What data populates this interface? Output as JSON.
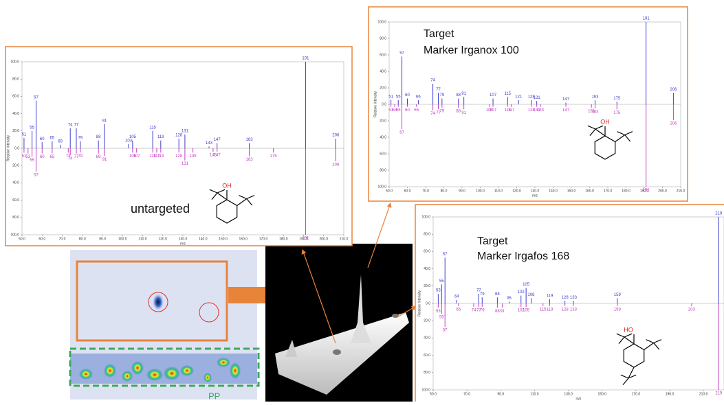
{
  "chart_data": [
    {
      "type": "mirror",
      "annotation": [
        "untargeted"
      ],
      "structure_label": "OH",
      "x_label": "m/z",
      "y_label": "Relative Intensity",
      "xlim": [
        50,
        210
      ],
      "xticks": [
        {
          "value": 50,
          "label": "50.0"
        },
        {
          "value": 60,
          "label": "60.0"
        },
        {
          "value": 70,
          "label": "70.0"
        },
        {
          "value": 80,
          "label": "80.0"
        },
        {
          "value": 90,
          "label": "90.0"
        },
        {
          "value": 100,
          "label": "100.0"
        },
        {
          "value": 110,
          "label": "110.0"
        },
        {
          "value": 120,
          "label": "120.0"
        },
        {
          "value": 130,
          "label": "130.0"
        },
        {
          "value": 140,
          "label": "140.0"
        },
        {
          "value": 150,
          "label": "150.0"
        },
        {
          "value": 160,
          "label": "160.0"
        },
        {
          "value": 170,
          "label": "170.0"
        },
        {
          "value": 180,
          "label": "180.0"
        },
        {
          "value": 190,
          "label": "190.0"
        },
        {
          "value": 200,
          "label": "200.0"
        },
        {
          "value": 210,
          "label": "210.0"
        }
      ],
      "ylim": [
        -100,
        100
      ],
      "yticks": [
        {
          "value": 100,
          "label": "100.0"
        },
        {
          "value": 80,
          "label": "80.0"
        },
        {
          "value": 60,
          "label": "60.0"
        },
        {
          "value": 40,
          "label": "40.0"
        },
        {
          "value": 20,
          "label": "20.0"
        },
        {
          "value": 0,
          "label": "0.0"
        },
        {
          "value": -20,
          "label": "20.0"
        },
        {
          "value": -40,
          "label": "40.0"
        },
        {
          "value": -60,
          "label": "60.0"
        },
        {
          "value": -80,
          "label": "80.0"
        },
        {
          "value": -100,
          "label": "100.0"
        }
      ],
      "series": [
        {
          "color": "#3a3ad0",
          "x": [
            51,
            55,
            57,
            60,
            65,
            69,
            74,
            77,
            79,
            88,
            91,
            103,
            105,
            115,
            119,
            128,
            131,
            143,
            147,
            163,
            191,
            206
          ],
          "values": [
            12,
            20,
            55,
            7,
            8,
            4,
            23,
            23,
            8,
            9,
            28,
            5,
            9,
            20,
            9,
            11,
            16,
            2,
            6,
            6,
            100,
            11
          ]
        },
        {
          "color": "#c03cc0",
          "x": [
            51,
            53,
            55,
            57,
            60,
            65,
            73,
            74,
            77,
            79,
            88,
            91,
            105,
            107,
            115,
            117,
            119,
            128,
            131,
            135,
            145,
            147,
            163,
            175,
            191,
            206
          ],
          "values": [
            -5,
            -6,
            -10,
            -27,
            -6,
            -6,
            -5,
            -8,
            -6,
            -5,
            -6,
            -9,
            -5,
            -5,
            -5,
            -5,
            -5,
            -5,
            -14,
            -5,
            -4,
            -4,
            -9,
            -5,
            -100,
            -15
          ]
        }
      ]
    },
    {
      "type": "mirror",
      "annotation": [
        "Target",
        "Marker Irganox 100"
      ],
      "structure_label": "OH",
      "x_label": "m/z",
      "y_label": "Relative Intensity",
      "xlim": [
        50,
        210
      ],
      "xticks": [
        {
          "value": 50,
          "label": "50.0"
        },
        {
          "value": 60,
          "label": "60.0"
        },
        {
          "value": 70,
          "label": "70.0"
        },
        {
          "value": 80,
          "label": "80.0"
        },
        {
          "value": 90,
          "label": "90.0"
        },
        {
          "value": 100,
          "label": "100.0"
        },
        {
          "value": 110,
          "label": "110.0"
        },
        {
          "value": 120,
          "label": "120.0"
        },
        {
          "value": 130,
          "label": "130.0"
        },
        {
          "value": 140,
          "label": "140.0"
        },
        {
          "value": 150,
          "label": "150.0"
        },
        {
          "value": 160,
          "label": "160.0"
        },
        {
          "value": 170,
          "label": "170.0"
        },
        {
          "value": 180,
          "label": "180.0"
        },
        {
          "value": 190,
          "label": "190.0"
        },
        {
          "value": 200,
          "label": "200.0"
        },
        {
          "value": 210,
          "label": "210.0"
        }
      ],
      "ylim": [
        -100,
        100
      ],
      "yticks": [
        {
          "value": 100,
          "label": "100.0"
        },
        {
          "value": 80,
          "label": "80.0"
        },
        {
          "value": 60,
          "label": "60.0"
        },
        {
          "value": 40,
          "label": "40.0"
        },
        {
          "value": 20,
          "label": "20.0"
        },
        {
          "value": 0,
          "label": "0.0"
        },
        {
          "value": -20,
          "label": "20.0"
        },
        {
          "value": -40,
          "label": "40.0"
        },
        {
          "value": -60,
          "label": "60.0"
        },
        {
          "value": -80,
          "label": "80.0"
        },
        {
          "value": -100,
          "label": "100.0"
        }
      ],
      "series": [
        {
          "color": "#3a3ad0",
          "x": [
            51,
            55,
            57,
            60,
            66,
            74,
            77,
            79,
            88,
            91,
            107,
            115,
            121,
            128,
            131,
            147,
            163,
            175,
            191,
            206
          ],
          "values": [
            5,
            5,
            58,
            7,
            5,
            25,
            14,
            7,
            7,
            9,
            7,
            9,
            5,
            5,
            4,
            2,
            5,
            3,
            100,
            14
          ]
        },
        {
          "color": "#c03cc0",
          "x": [
            51,
            53,
            55,
            57,
            60,
            65,
            74,
            77,
            79,
            88,
            91,
            105,
            107,
            115,
            117,
            128,
            131,
            133,
            147,
            161,
            163,
            175,
            191,
            206
          ],
          "values": [
            -3,
            -3,
            -3,
            -30,
            -3,
            -3,
            -7,
            -6,
            -4,
            -4,
            -6,
            -3,
            -3,
            -3,
            -3,
            -3,
            -3,
            -3,
            -3,
            -4,
            -5,
            -6,
            -100,
            -19
          ]
        }
      ]
    },
    {
      "type": "mirror",
      "annotation": [
        "Target",
        "Marker Irgafos 168"
      ],
      "structure_label": "HO",
      "x_label": "m/z",
      "y_label": "Relative Intensity",
      "xlim": [
        50,
        225
      ],
      "xticks": [
        {
          "value": 50,
          "label": "50.0"
        },
        {
          "value": 70,
          "label": "70.0"
        },
        {
          "value": 90,
          "label": "90.0"
        },
        {
          "value": 110,
          "label": "110.0"
        },
        {
          "value": 130,
          "label": "130.0"
        },
        {
          "value": 150,
          "label": "150.0"
        },
        {
          "value": 170,
          "label": "170.0"
        },
        {
          "value": 190,
          "label": "190.0"
        },
        {
          "value": 210,
          "label": "210.0"
        }
      ],
      "ylim": [
        -100,
        100
      ],
      "yticks": [
        {
          "value": 100,
          "label": "100.0"
        },
        {
          "value": 80,
          "label": "80.0"
        },
        {
          "value": 60,
          "label": "60.0"
        },
        {
          "value": 40,
          "label": "40.0"
        },
        {
          "value": 20,
          "label": "20.0"
        },
        {
          "value": 0,
          "label": "0.0"
        },
        {
          "value": -20,
          "label": "20.0"
        },
        {
          "value": -40,
          "label": "40.0"
        },
        {
          "value": -60,
          "label": "60.0"
        },
        {
          "value": -80,
          "label": "80.0"
        },
        {
          "value": -100,
          "label": "100.0"
        }
      ],
      "series": [
        {
          "color": "#3a3ad0",
          "x": [
            53,
            55,
            57,
            64,
            77,
            79,
            88,
            95,
            102,
            105,
            108,
            119,
            128,
            133,
            159,
            219
          ],
          "values": [
            11,
            22,
            53,
            4,
            11,
            7,
            7,
            2,
            9,
            18,
            6,
            5,
            3,
            3,
            6,
            100
          ]
        },
        {
          "color": "#c03cc0",
          "x": [
            53,
            55,
            57,
            65,
            74,
            77,
            79,
            88,
            91,
            102,
            105,
            115,
            119,
            128,
            133,
            159,
            203,
            219
          ],
          "values": [
            -5,
            -12,
            -27,
            -3,
            -4,
            -4,
            -4,
            -5,
            -5,
            -4,
            -4,
            -3,
            -3,
            -3,
            -3,
            -3,
            -3,
            -100
          ]
        }
      ]
    }
  ],
  "chromatogram_label": "PP"
}
